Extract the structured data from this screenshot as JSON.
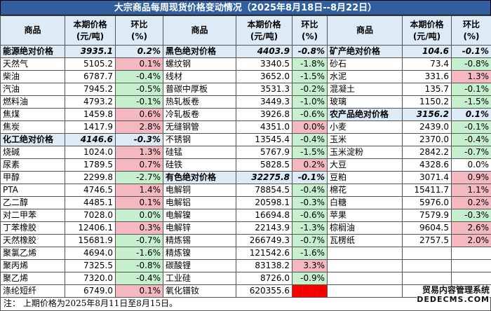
{
  "title": "大宗商品每周现货价格变动情况（2025年8月18日--8月22日）",
  "headers": {
    "name": "商品",
    "price": "本期价格\n(元/吨)",
    "change": "环比\n(%)"
  },
  "columns": [
    {
      "rows": [
        {
          "name": "能源绝对价格",
          "price": "3935.1",
          "change": "0.2%",
          "group": true,
          "dir": "flat"
        },
        {
          "name": "天然气",
          "price": "5105.2",
          "change": "0.1%",
          "dir": "up"
        },
        {
          "name": "柴油",
          "price": "6787.7",
          "change": "-0.4%",
          "dir": "down"
        },
        {
          "name": "汽油",
          "price": "7945.2",
          "change": "-0.5%",
          "dir": "down"
        },
        {
          "name": "燃料油",
          "price": "4793.2",
          "change": "-0.1%",
          "dir": "down"
        },
        {
          "name": "焦煤",
          "price": "1459.8",
          "change": "0.6%",
          "dir": "up"
        },
        {
          "name": "焦炭",
          "price": "1417.9",
          "change": "2.8%",
          "dir": "up"
        },
        {
          "name": "化工绝对价格",
          "price": "4146.6",
          "change": "-0.3%",
          "group": true,
          "dir": "flat"
        },
        {
          "name": "烧碱",
          "price": "1024.0",
          "change": "1.3%",
          "dir": "up"
        },
        {
          "name": "尿素",
          "price": "1789.5",
          "change": "0.7%",
          "dir": "up"
        },
        {
          "name": "甲醇",
          "price": "2299.8",
          "change": "-2.7%",
          "dir": "down"
        },
        {
          "name": "PTA",
          "price": "4746.5",
          "change": "1.4%",
          "dir": "up"
        },
        {
          "name": "乙二醇",
          "price": "4485.1",
          "change": "0.1%",
          "dir": "up"
        },
        {
          "name": "对二甲苯",
          "price": "7028.0",
          "change": "0.0%",
          "dir": "down"
        },
        {
          "name": "丁苯橡胶",
          "price": "12406.1",
          "change": "0.3%",
          "dir": "up"
        },
        {
          "name": "天然橡胶",
          "price": "15681.9",
          "change": "-0.7%",
          "dir": "down"
        },
        {
          "name": "聚氯乙烯",
          "price": "4694.0",
          "change": "-1.6%",
          "dir": "down"
        },
        {
          "name": "聚丙烯",
          "price": "7325.5",
          "change": "-0.8%",
          "dir": "down"
        },
        {
          "name": "聚乙烯",
          "price": "7320.0",
          "change": "-0.4%",
          "dir": "down"
        },
        {
          "name": "涤纶短纤",
          "price": "6749.0",
          "change": "0.1%",
          "dir": "up"
        }
      ]
    },
    {
      "rows": [
        {
          "name": "黑色绝对价格",
          "price": "4403.9",
          "change": "-0.8%",
          "group": true,
          "dir": "flat"
        },
        {
          "name": "螺纹钢",
          "price": "3340.5",
          "change": "-1.8%",
          "dir": "down"
        },
        {
          "name": "线材",
          "price": "3652.0",
          "change": "-1.5%",
          "dir": "down"
        },
        {
          "name": "普碳中厚板",
          "price": "3531.3",
          "change": "-0.2%",
          "dir": "down"
        },
        {
          "name": "热轧板卷",
          "price": "3449.3",
          "change": "-1.0%",
          "dir": "down"
        },
        {
          "name": "冷轧板卷",
          "price": "3926.8",
          "change": "-0.6%",
          "dir": "down"
        },
        {
          "name": "无缝钢管",
          "price": "4351.0",
          "change": "0.0%",
          "dir": "up"
        },
        {
          "name": "不锈钢",
          "price": "13545.4",
          "change": "-0.4%",
          "dir": "down"
        },
        {
          "name": "硅锰",
          "price": "5767.9",
          "change": "-1.5%",
          "dir": "down"
        },
        {
          "name": "硅铁",
          "price": "5828.5",
          "change": "0.2%",
          "dir": "up"
        },
        {
          "name": "有色绝对价格",
          "price": "32275.8",
          "change": "-0.1%",
          "group": true,
          "dir": "flat"
        },
        {
          "name": "电解铜",
          "price": "78854.5",
          "change": "-0.4%",
          "dir": "down"
        },
        {
          "name": "电解铝",
          "price": "20598.1",
          "change": "-0.3%",
          "dir": "down"
        },
        {
          "name": "电解镍",
          "price": "16694.8",
          "change": "-0.6%",
          "dir": "down"
        },
        {
          "name": "电解锌",
          "price": "22143.9",
          "change": "-1.3%",
          "dir": "down"
        },
        {
          "name": "精炼锡",
          "price": "266749.3",
          "change": "-0.7%",
          "dir": "down"
        },
        {
          "name": "精炼镍",
          "price": "121542.6",
          "change": "-1.6%",
          "dir": "down"
        },
        {
          "name": "碳酸锂",
          "price": "83138.2",
          "change": "3.3%",
          "dir": "up"
        },
        {
          "name": "工业硅",
          "price": "8726.0",
          "change": "-0.9%",
          "dir": "down"
        },
        {
          "name": "氧化镨钕",
          "price": "620355.6",
          "change": "15.0%",
          "dir": "deep"
        }
      ]
    },
    {
      "rows": [
        {
          "name": "矿产绝对价格",
          "price": "104.6",
          "change": "-0.1%",
          "group": true,
          "dir": "flat"
        },
        {
          "name": "砂石",
          "price": "73.4",
          "change": "-0.8%",
          "dir": "down"
        },
        {
          "name": "水泥",
          "price": "331.6",
          "change": "1.3%",
          "dir": "up"
        },
        {
          "name": "混凝土",
          "price": "135.7",
          "change": "-0.1%",
          "dir": "down"
        },
        {
          "name": "玻璃",
          "price": "1150.2",
          "change": "-1.5%",
          "dir": "down"
        },
        {
          "name": "农产品绝对价格",
          "price": "3156.2",
          "change": "0.1%",
          "group": true,
          "dir": "flat"
        },
        {
          "name": "小麦",
          "price": "2439.0",
          "change": "-0.1%",
          "dir": "down"
        },
        {
          "name": "玉米",
          "price": "2370.0",
          "change": "-0.4%",
          "dir": "down"
        },
        {
          "name": "玉米淀粉",
          "price": "2842.2",
          "change": "-0.7%",
          "dir": "down"
        },
        {
          "name": "大豆",
          "price": "4328.6",
          "change": "0.0%",
          "dir": "flatwhite"
        },
        {
          "name": "豆粕",
          "price": "3071.4",
          "change": "0.9%",
          "dir": "up"
        },
        {
          "name": "棉花",
          "price": "15411.7",
          "change": "1.1%",
          "dir": "up"
        },
        {
          "name": "白糖",
          "price": "5976.0",
          "change": "0.2%",
          "dir": "up"
        },
        {
          "name": "苹果",
          "price": "7579.9",
          "change": "-0.3%",
          "dir": "down"
        },
        {
          "name": "棕榈油",
          "price": "9604.5",
          "change": "2.6%",
          "dir": "up"
        },
        {
          "name": "瓦楞纸",
          "price": "2757.5",
          "change": "2.0%",
          "dir": "up"
        },
        {
          "name": "",
          "price": "",
          "change": "",
          "dir": "blank"
        },
        {
          "name": "",
          "price": "",
          "change": "",
          "dir": "blank"
        },
        {
          "name": "",
          "price": "",
          "change": "",
          "dir": "blank"
        },
        {
          "name": "",
          "price": "",
          "change": "",
          "dir": "blank"
        }
      ]
    }
  ],
  "note": "注： 上期价格为2025年8月11日至8月15日。",
  "watermark": {
    "line1": "贸易内容管理系统",
    "line2": "DEDECMS.COM"
  },
  "colors": {
    "header_bg": "#2f5f9e",
    "col_header_bg": "#ddebf7",
    "up": "#f4b8c1",
    "down": "#c6efce",
    "deep": "#ff0000"
  }
}
